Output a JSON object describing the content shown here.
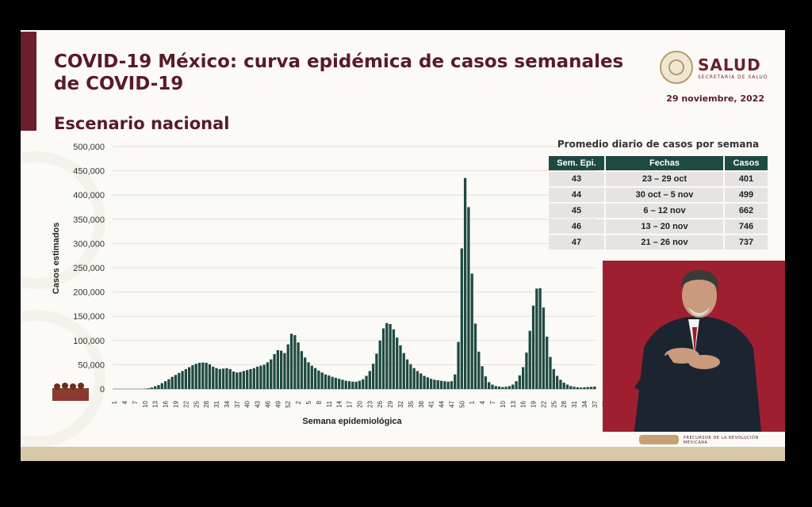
{
  "slide": {
    "title": "COVID-19 México: curva epidémica de casos semanales de COVID-19",
    "subtitle": "Escenario nacional",
    "date": "29 noviembre, 2022",
    "logo_main": "SALUD",
    "logo_sub": "SECRETARÍA DE SALUD",
    "footer_text": "PRECURSOR DE LA REVOLUCIÓN MEXICANA"
  },
  "table": {
    "title": "Promedio diario de casos por semana",
    "headers": [
      "Sem. Epi.",
      "Fechas",
      "Casos"
    ],
    "rows": [
      [
        "43",
        "23 – 29 oct",
        "401"
      ],
      [
        "44",
        "30 oct – 5 nov",
        "499"
      ],
      [
        "45",
        "6 – 12 nov",
        "662"
      ],
      [
        "46",
        "13 – 20 nov",
        "746"
      ],
      [
        "47",
        "21 – 26 nov",
        "737"
      ]
    ]
  },
  "colors": {
    "accent": "#6b1f2e",
    "bar": "#1f4a42",
    "table_header": "#1f4a42",
    "presenter_bg": "#9e1f30"
  },
  "chart_data": {
    "type": "bar",
    "title": "",
    "xlabel": "Semana epidemiológica",
    "ylabel": "Casos estimados",
    "ylim": [
      0,
      500000
    ],
    "yticks": [
      "0",
      "50,000",
      "100,000",
      "150,000",
      "200,000",
      "250,000",
      "300,000",
      "350,000",
      "400,000",
      "450,000",
      "500,000"
    ],
    "xticks": [
      "1",
      "4",
      "7",
      "10",
      "13",
      "16",
      "19",
      "22",
      "25",
      "28",
      "31",
      "34",
      "37",
      "40",
      "43",
      "46",
      "49",
      "52",
      "2",
      "5",
      "8",
      "11",
      "14",
      "17",
      "20",
      "23",
      "26",
      "29",
      "32",
      "35",
      "38",
      "41",
      "44",
      "47",
      "50",
      "1",
      "4",
      "7",
      "10",
      "13",
      "16",
      "19",
      "22",
      "25",
      "28",
      "31",
      "34",
      "37",
      "40",
      "43",
      "46"
    ],
    "grid": true,
    "values": [
      0,
      0,
      0,
      0,
      0,
      0,
      0,
      0,
      0,
      500,
      1500,
      3000,
      5500,
      8000,
      12000,
      16000,
      20000,
      25000,
      29000,
      33000,
      37000,
      41000,
      45000,
      49000,
      52000,
      54000,
      54500,
      54000,
      51000,
      46000,
      43000,
      41000,
      42000,
      43000,
      41000,
      36000,
      34000,
      35000,
      37000,
      39000,
      41000,
      43000,
      46000,
      48000,
      50000,
      55000,
      61000,
      72000,
      80000,
      79000,
      74000,
      92000,
      114000,
      111000,
      96000,
      78000,
      65000,
      55000,
      48000,
      43000,
      38000,
      34000,
      30000,
      28000,
      25000,
      23000,
      21000,
      19000,
      17000,
      16000,
      15000,
      15000,
      17000,
      20000,
      27000,
      37000,
      52000,
      73000,
      100000,
      125000,
      136000,
      134000,
      123000,
      106000,
      90000,
      74000,
      61000,
      51000,
      43000,
      37000,
      32000,
      27000,
      24000,
      21000,
      19000,
      18000,
      17000,
      16000,
      15000,
      16000,
      30000,
      97000,
      290000,
      435000,
      375000,
      238000,
      135000,
      77000,
      47000,
      26000,
      14000,
      9000,
      6000,
      5000,
      4000,
      4500,
      6000,
      9000,
      16000,
      28000,
      45000,
      75000,
      120000,
      172000,
      207000,
      208000,
      168000,
      108000,
      66000,
      41000,
      27000,
      19000,
      13000,
      9000,
      6000,
      4500,
      3500,
      3000,
      3500,
      4000,
      4500,
      5000
    ]
  }
}
